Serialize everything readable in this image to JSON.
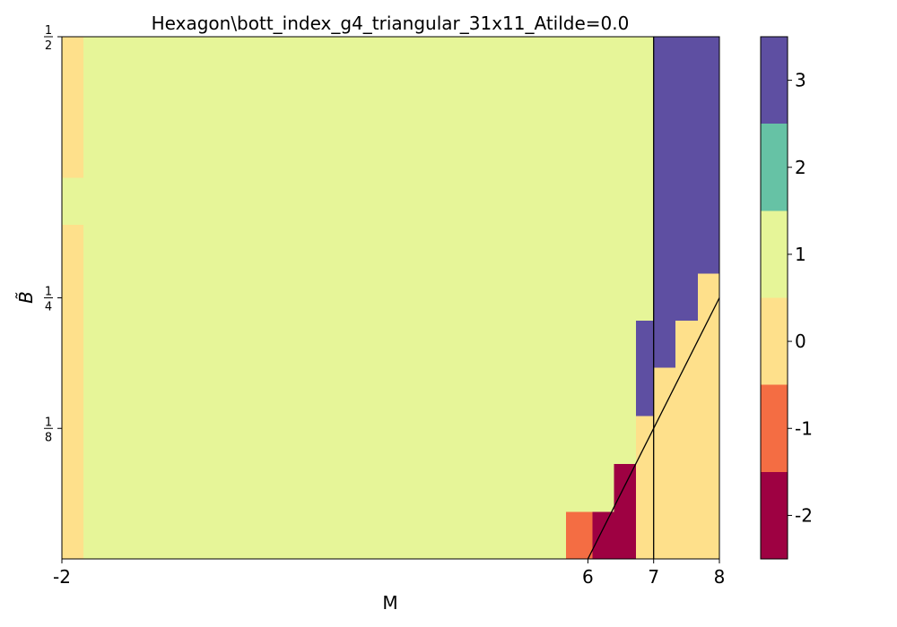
{
  "chart_data": {
    "type": "heatmap",
    "title": "Hexagon\\bott_index_g4_triangular_31x11_Atilde=0.0",
    "xlabel": "M",
    "ylabel": "B̃",
    "xlim": [
      -2,
      8
    ],
    "ylim": [
      0.0,
      0.5
    ],
    "x_tick_labels": [
      "-2",
      "6",
      "7",
      "8"
    ],
    "x_tick_values": [
      -2,
      6,
      7,
      8
    ],
    "y_ticks": [
      {
        "value": 0.125,
        "num": "1",
        "den": "8"
      },
      {
        "value": 0.25,
        "num": "1",
        "den": "4"
      },
      {
        "value": 0.5,
        "num": "1",
        "den": "2"
      }
    ],
    "colorbar": {
      "levels": [
        {
          "value": 3,
          "label": "3",
          "color": "#5e4fa2"
        },
        {
          "value": 2,
          "label": "2",
          "color": "#66c2a5"
        },
        {
          "value": 1,
          "label": "1",
          "color": "#e6f598"
        },
        {
          "value": 0,
          "label": "0",
          "color": "#fee08b"
        },
        {
          "value": -1,
          "label": "-1",
          "color": "#f46d43"
        },
        {
          "value": -2,
          "label": "-2",
          "color": "#9e0142"
        }
      ]
    },
    "background_value": 1,
    "regions": [
      {
        "x": [
          -2.0,
          -1.67
        ],
        "y": [
          0.0,
          0.32
        ],
        "value": 0
      },
      {
        "x": [
          -2.0,
          -1.67
        ],
        "y": [
          0.365,
          0.5
        ],
        "value": 0
      },
      {
        "x": [
          5.67,
          6.07
        ],
        "y": [
          0.0,
          0.045
        ],
        "value": -1
      },
      {
        "x": [
          6.07,
          6.4
        ],
        "y": [
          0.0,
          0.045
        ],
        "value": -2
      },
      {
        "x": [
          6.4,
          6.73
        ],
        "y": [
          0.0,
          0.091
        ],
        "value": -2
      },
      {
        "x": [
          6.73,
          7.0
        ],
        "y": [
          0.0,
          0.137
        ],
        "value": 0
      },
      {
        "x": [
          6.73,
          7.0
        ],
        "y": [
          0.137,
          0.228
        ],
        "value": 3
      },
      {
        "x": [
          7.0,
          7.33
        ],
        "y": [
          0.0,
          0.183
        ],
        "value": 0
      },
      {
        "x": [
          7.0,
          7.33
        ],
        "y": [
          0.183,
          0.5
        ],
        "value": 3
      },
      {
        "x": [
          7.33,
          7.67
        ],
        "y": [
          0.0,
          0.228
        ],
        "value": 0
      },
      {
        "x": [
          7.33,
          7.67
        ],
        "y": [
          0.228,
          0.5
        ],
        "value": 3
      },
      {
        "x": [
          7.67,
          8.0
        ],
        "y": [
          0.0,
          0.273
        ],
        "value": 0
      },
      {
        "x": [
          7.67,
          8.0
        ],
        "y": [
          0.273,
          0.5
        ],
        "value": 3
      }
    ],
    "lines": [
      {
        "x": [
          6.0,
          8.0
        ],
        "y": [
          0.0,
          0.25
        ]
      },
      {
        "x": [
          7.0,
          7.0
        ],
        "y": [
          0.0,
          0.5
        ]
      }
    ]
  }
}
